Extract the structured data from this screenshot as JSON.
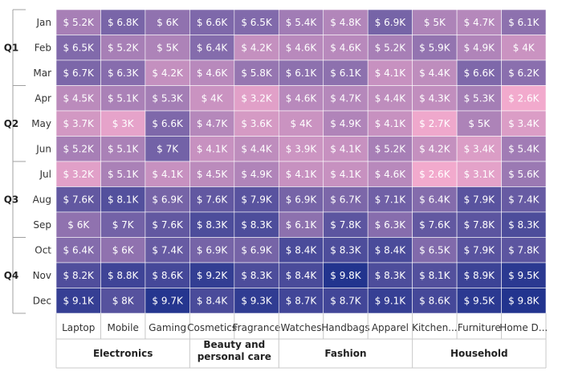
{
  "chart_data": {
    "type": "heatmap",
    "value_prefix": "$",
    "value_suffix": "K",
    "quarters": [
      {
        "label": "Q1",
        "months": [
          "Jan",
          "Feb",
          "Mar"
        ]
      },
      {
        "label": "Q2",
        "months": [
          "Apr",
          "May",
          "Jun"
        ]
      },
      {
        "label": "Q3",
        "months": [
          "Jul",
          "Aug",
          "Sep"
        ]
      },
      {
        "label": "Q4",
        "months": [
          "Oct",
          "Nov",
          "Dec"
        ]
      }
    ],
    "months": [
      "Jan",
      "Feb",
      "Mar",
      "Apr",
      "May",
      "Jun",
      "Jul",
      "Aug",
      "Sep",
      "Oct",
      "Nov",
      "Dec"
    ],
    "product_categories": [
      {
        "label": "Electronics",
        "products": [
          "Laptop",
          "Mobile",
          "Gaming"
        ]
      },
      {
        "label": "Beauty and personal care",
        "products": [
          "Cosmetics",
          "Fragrance"
        ]
      },
      {
        "label": "Fashion",
        "products": [
          "Watches",
          "Handbags",
          "Apparel"
        ]
      },
      {
        "label": "Household",
        "products": [
          "Kitchen...",
          "Furniture",
          "Home D..."
        ]
      }
    ],
    "products": [
      "Laptop",
      "Mobile",
      "Gaming",
      "Cosmetics",
      "Fragrance",
      "Watches",
      "Handbags",
      "Apparel",
      "Kitchen...",
      "Furniture",
      "Home D..."
    ],
    "values": [
      [
        5.2,
        6.8,
        6,
        6.6,
        6.5,
        5.4,
        4.8,
        6.9,
        5,
        4.7,
        6.1
      ],
      [
        6.5,
        5.2,
        5,
        6.4,
        4.2,
        4.6,
        4.6,
        5.2,
        5.9,
        4.9,
        4
      ],
      [
        6.7,
        6.3,
        4.2,
        4.6,
        5.8,
        6.1,
        6.1,
        4.1,
        4.4,
        6.6,
        6.2
      ],
      [
        4.5,
        5.1,
        5.3,
        4,
        3.2,
        4.6,
        4.7,
        4.4,
        4.3,
        5.3,
        2.6
      ],
      [
        3.7,
        3,
        6.6,
        4.7,
        3.6,
        4,
        4.9,
        4.1,
        2.7,
        5,
        3.4
      ],
      [
        5.2,
        5.1,
        7,
        4.1,
        4.4,
        3.9,
        4.1,
        5.2,
        4.2,
        3.4,
        5.4
      ],
      [
        3.2,
        5.1,
        4.1,
        4.5,
        4.9,
        4.1,
        4.1,
        4.6,
        2.6,
        3.1,
        5.6
      ],
      [
        7.6,
        8.1,
        6.9,
        7.6,
        7.9,
        6.9,
        6.7,
        7.1,
        6.4,
        7.9,
        7.4
      ],
      [
        6,
        7,
        7.6,
        8.3,
        8.3,
        6.1,
        7.8,
        6.3,
        7.6,
        7.8,
        8.3
      ],
      [
        6.4,
        6,
        7.4,
        6.9,
        6.9,
        8.4,
        8.3,
        8.4,
        6.5,
        7.9,
        7.8
      ],
      [
        8.2,
        8.8,
        8.6,
        9.2,
        8.3,
        8.4,
        9.8,
        8.3,
        8.1,
        8.9,
        9.5
      ],
      [
        9.1,
        8,
        9.7,
        8.4,
        9.3,
        8.7,
        8.7,
        9.1,
        8.6,
        9.5,
        9.8
      ]
    ],
    "color_low": "#f2aacd",
    "color_high": "#22348e",
    "value_min": 2.6,
    "value_max": 9.8
  }
}
